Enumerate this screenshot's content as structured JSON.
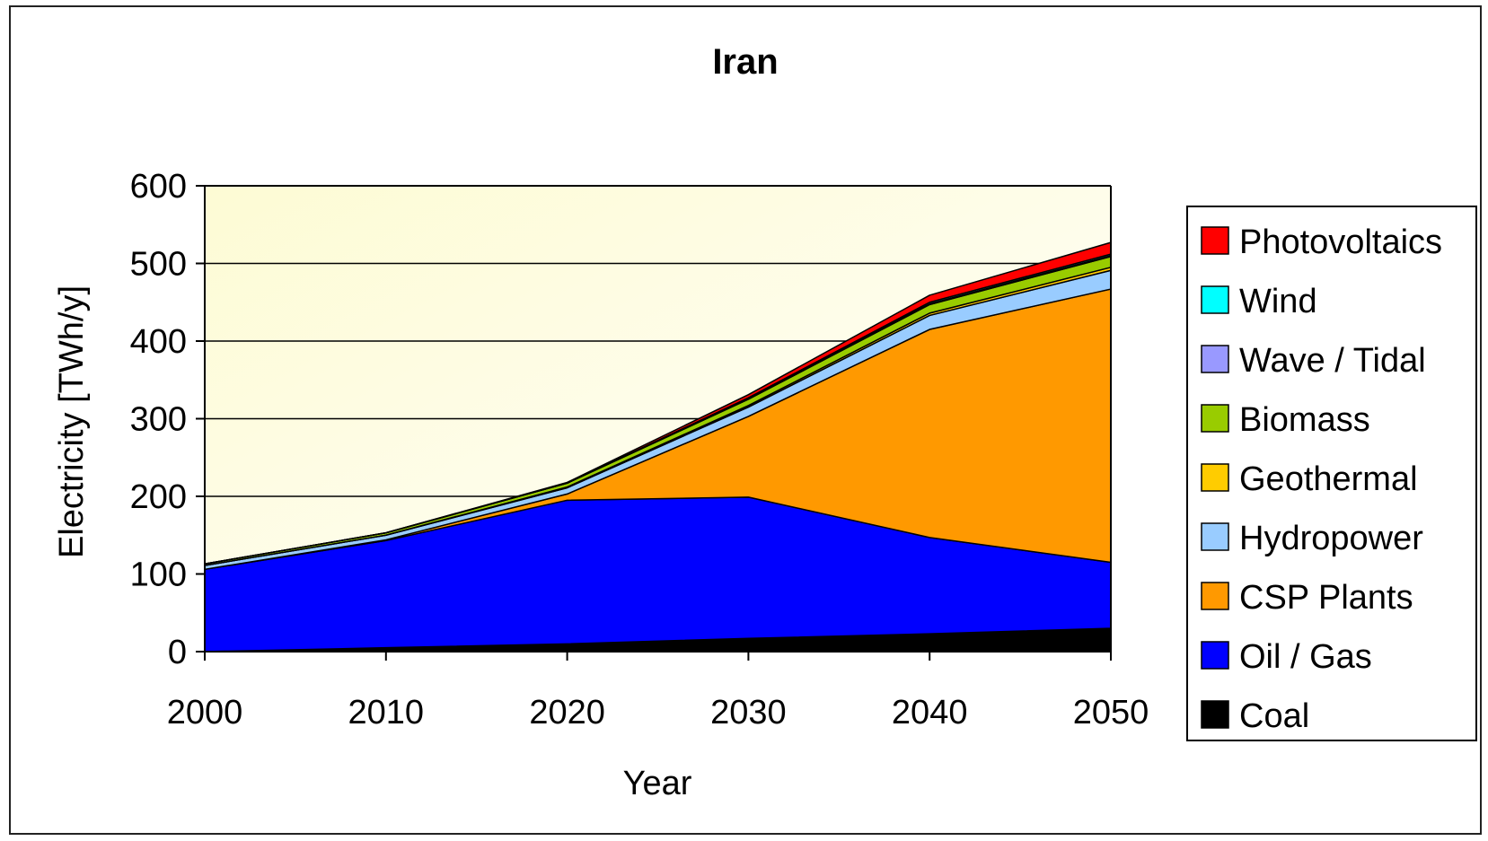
{
  "chart_data": {
    "type": "area",
    "stacked": true,
    "title": "Iran",
    "xlabel": "Year",
    "ylabel": "Electricity [TWh/y]",
    "x": [
      2000,
      2010,
      2020,
      2030,
      2040,
      2050
    ],
    "xlim": [
      2000,
      2050
    ],
    "ylim": [
      0,
      600
    ],
    "yticks": [
      0,
      100,
      200,
      300,
      400,
      500,
      600
    ],
    "grid": true,
    "legend_position": "right",
    "plot_background": "#fdfce0",
    "series": [
      {
        "name": "Coal",
        "color": "#000000",
        "values": [
          0,
          5,
          10,
          17,
          23,
          30
        ]
      },
      {
        "name": "Oil / Gas",
        "color": "#0000ff",
        "values": [
          106,
          138,
          185,
          182,
          124,
          85
        ]
      },
      {
        "name": "CSP Plants",
        "color": "#ff9900",
        "values": [
          0,
          1,
          8,
          104,
          268,
          352
        ]
      },
      {
        "name": "Hydropower",
        "color": "#99ccff",
        "values": [
          5,
          6,
          8,
          12,
          18,
          24
        ]
      },
      {
        "name": "Geothermal",
        "color": "#ffcc00",
        "values": [
          0,
          0,
          1,
          2,
          3,
          4
        ]
      },
      {
        "name": "Biomass",
        "color": "#99cc00",
        "values": [
          2,
          3,
          5,
          8,
          11,
          14
        ]
      },
      {
        "name": "Wave / Tidal",
        "color": "#9999ff",
        "values": [
          0,
          0,
          0,
          1,
          1,
          1
        ]
      },
      {
        "name": "Wind",
        "color": "#00ffff",
        "values": [
          0,
          0,
          0,
          1,
          2,
          2
        ]
      },
      {
        "name": "Photovoltaics",
        "color": "#ff0000",
        "values": [
          0,
          0,
          1,
          4,
          9,
          15
        ]
      }
    ]
  }
}
